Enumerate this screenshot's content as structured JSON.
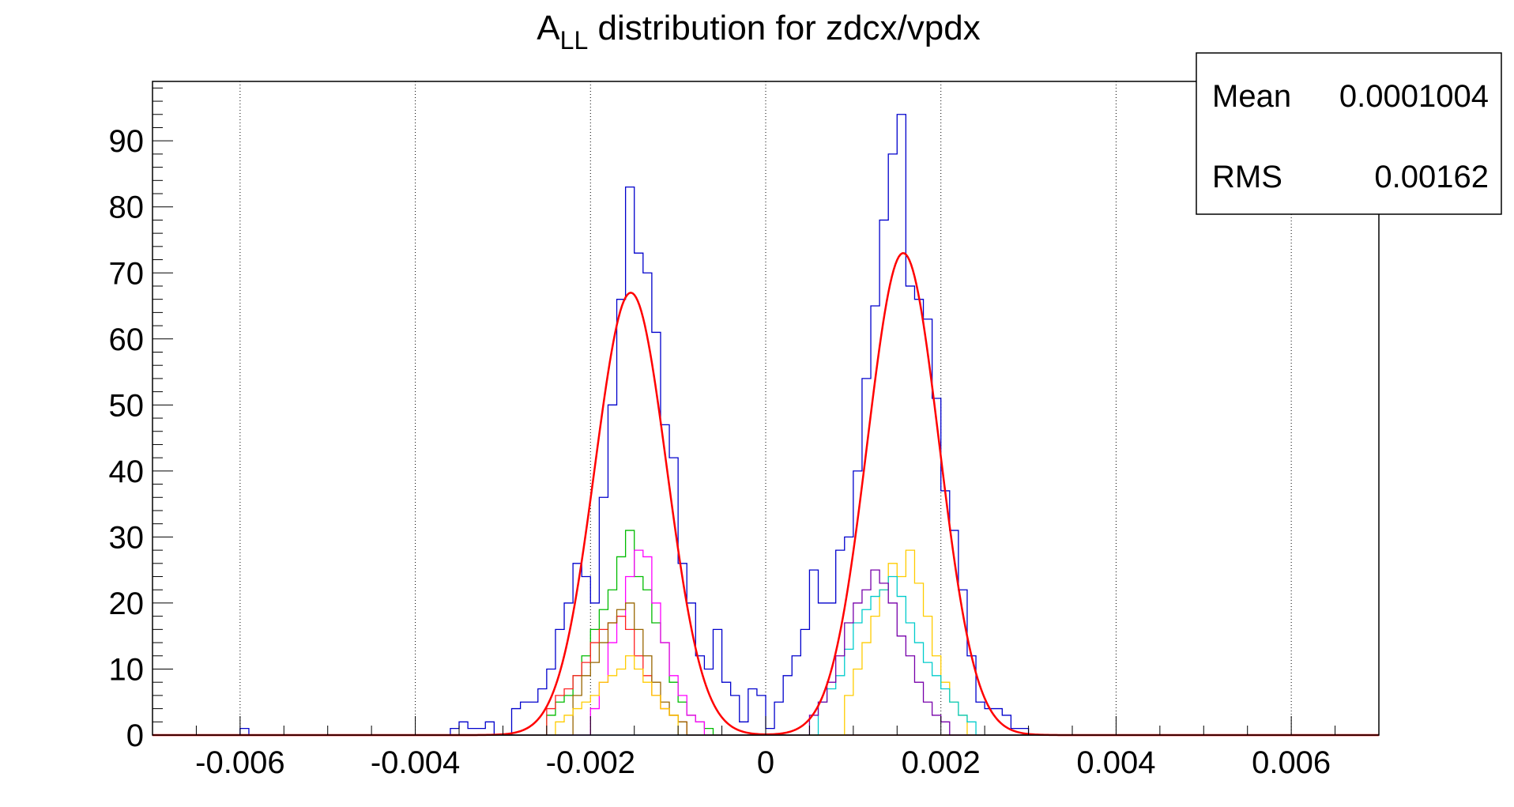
{
  "chart_data": {
    "type": "histogram",
    "title": {
      "main": "A",
      "subscript": "LL",
      "rest": " distribution for zdcx/vpdx"
    },
    "xlabel": "",
    "ylabel": "",
    "xlim": [
      -0.007,
      0.007
    ],
    "ylim": [
      0,
      99
    ],
    "x_tick_labels": [
      "-0.006",
      "-0.004",
      "-0.002",
      "0",
      "0.002",
      "0.004",
      "0.006"
    ],
    "y_tick_labels": [
      "0",
      "10",
      "20",
      "30",
      "40",
      "50",
      "60",
      "70",
      "80",
      "90"
    ],
    "grid": {
      "vertical": true,
      "horizontal": false,
      "style": "dotted"
    },
    "stats_box": {
      "position": "top-right",
      "rows": [
        {
          "label": "Mean",
          "value": "0.0001004"
        },
        {
          "label": "RMS",
          "value": "0.00162"
        }
      ]
    },
    "series": [
      {
        "color": "#0000cc",
        "bins": [
          [
            -0.006,
            1
          ],
          [
            -0.0036,
            1
          ],
          [
            -0.0035,
            2
          ],
          [
            -0.0034,
            1
          ],
          [
            -0.0033,
            1
          ],
          [
            -0.0032,
            2
          ],
          [
            -0.0029,
            4
          ],
          [
            -0.0028,
            5
          ],
          [
            -0.0027,
            5
          ],
          [
            -0.0026,
            7
          ],
          [
            -0.0025,
            10
          ],
          [
            -0.0024,
            16
          ],
          [
            -0.0023,
            20
          ],
          [
            -0.0022,
            26
          ],
          [
            -0.0021,
            24
          ],
          [
            -0.002,
            20
          ],
          [
            -0.0019,
            36
          ],
          [
            -0.0018,
            50
          ],
          [
            -0.0017,
            66
          ],
          [
            -0.0016,
            83
          ],
          [
            -0.0015,
            73
          ],
          [
            -0.0014,
            70
          ],
          [
            -0.0013,
            61
          ],
          [
            -0.0012,
            47
          ],
          [
            -0.0011,
            42
          ],
          [
            -0.001,
            26
          ],
          [
            -0.0009,
            20
          ],
          [
            -0.0008,
            12
          ],
          [
            -0.0007,
            10
          ],
          [
            -0.0006,
            16
          ],
          [
            -0.0005,
            8
          ],
          [
            -0.0004,
            6
          ],
          [
            -0.0003,
            2
          ],
          [
            -0.0002,
            7
          ],
          [
            -0.0001,
            6
          ],
          [
            0.0,
            1
          ],
          [
            0.0001,
            5
          ],
          [
            0.0002,
            9
          ],
          [
            0.0003,
            12
          ],
          [
            0.0004,
            16
          ],
          [
            0.0005,
            25
          ],
          [
            0.0006,
            20
          ],
          [
            0.0007,
            20
          ],
          [
            0.0008,
            28
          ],
          [
            0.0009,
            30
          ],
          [
            0.001,
            40
          ],
          [
            0.0011,
            54
          ],
          [
            0.0012,
            65
          ],
          [
            0.0013,
            78
          ],
          [
            0.0014,
            88
          ],
          [
            0.0015,
            94
          ],
          [
            0.0016,
            68
          ],
          [
            0.0017,
            66
          ],
          [
            0.0018,
            63
          ],
          [
            0.0019,
            51
          ],
          [
            0.002,
            37
          ],
          [
            0.0021,
            31
          ],
          [
            0.0022,
            22
          ],
          [
            0.0023,
            12
          ],
          [
            0.0024,
            5
          ],
          [
            0.0025,
            4
          ],
          [
            0.0026,
            4
          ],
          [
            0.0027,
            3
          ],
          [
            0.0028,
            1
          ],
          [
            0.0029,
            1
          ]
        ]
      },
      {
        "color": "#00bb00",
        "bins": [
          [
            -0.0025,
            3
          ],
          [
            -0.0024,
            5
          ],
          [
            -0.0023,
            6
          ],
          [
            -0.0022,
            9
          ],
          [
            -0.0021,
            12
          ],
          [
            -0.002,
            16
          ],
          [
            -0.0019,
            19
          ],
          [
            -0.0018,
            22
          ],
          [
            -0.0017,
            27
          ],
          [
            -0.0016,
            31
          ],
          [
            -0.0015,
            24
          ],
          [
            -0.0014,
            22
          ],
          [
            -0.0013,
            17
          ],
          [
            -0.0012,
            14
          ],
          [
            -0.0011,
            8
          ],
          [
            -0.001,
            5
          ],
          [
            -0.0009,
            3
          ],
          [
            -0.0008,
            2
          ],
          [
            -0.0007,
            1
          ]
        ]
      },
      {
        "color": "#ff00ff",
        "bins": [
          [
            -0.002,
            4
          ],
          [
            -0.0019,
            8
          ],
          [
            -0.0018,
            14
          ],
          [
            -0.0017,
            18
          ],
          [
            -0.0016,
            24
          ],
          [
            -0.0015,
            28
          ],
          [
            -0.0014,
            27
          ],
          [
            -0.0013,
            20
          ],
          [
            -0.0012,
            14
          ],
          [
            -0.0011,
            9
          ],
          [
            -0.001,
            6
          ],
          [
            -0.0009,
            3
          ],
          [
            -0.0008,
            2
          ]
        ]
      },
      {
        "color": "#ff2020",
        "bins": [
          [
            -0.0025,
            4
          ],
          [
            -0.0024,
            6
          ],
          [
            -0.0023,
            7
          ],
          [
            -0.0022,
            9
          ],
          [
            -0.0021,
            11
          ],
          [
            -0.002,
            14
          ],
          [
            -0.0019,
            16
          ],
          [
            -0.0018,
            17
          ],
          [
            -0.0017,
            18
          ],
          [
            -0.0016,
            16
          ],
          [
            -0.0015,
            12
          ],
          [
            -0.0014,
            9
          ],
          [
            -0.0013,
            6
          ],
          [
            -0.0012,
            4
          ],
          [
            -0.0011,
            3
          ],
          [
            -0.001,
            2
          ]
        ]
      },
      {
        "color": "#996600",
        "bins": [
          [
            -0.0022,
            6
          ],
          [
            -0.0021,
            9
          ],
          [
            -0.002,
            11
          ],
          [
            -0.0019,
            14
          ],
          [
            -0.0018,
            17
          ],
          [
            -0.0017,
            19
          ],
          [
            -0.0016,
            20
          ],
          [
            -0.0015,
            16
          ],
          [
            -0.0014,
            12
          ],
          [
            -0.0013,
            8
          ],
          [
            -0.0012,
            5
          ],
          [
            -0.0011,
            3
          ],
          [
            -0.001,
            2
          ]
        ]
      },
      {
        "color": "#ffcc00",
        "bins": [
          [
            -0.0024,
            2
          ],
          [
            -0.0023,
            3
          ],
          [
            -0.0022,
            4
          ],
          [
            -0.0021,
            5
          ],
          [
            -0.002,
            6
          ],
          [
            -0.0019,
            8
          ],
          [
            -0.0018,
            9
          ],
          [
            -0.0017,
            10
          ],
          [
            -0.0016,
            12
          ],
          [
            -0.0015,
            10
          ],
          [
            -0.0014,
            8
          ],
          [
            -0.0013,
            6
          ],
          [
            -0.0012,
            4
          ],
          [
            -0.0011,
            3
          ],
          [
            0.0009,
            6
          ],
          [
            0.001,
            10
          ],
          [
            0.0011,
            14
          ],
          [
            0.0012,
            18
          ],
          [
            0.0013,
            22
          ],
          [
            0.0014,
            26
          ],
          [
            0.0015,
            24
          ],
          [
            0.0016,
            28
          ],
          [
            0.0017,
            23
          ],
          [
            0.0018,
            18
          ],
          [
            0.0019,
            12
          ],
          [
            0.002,
            8
          ],
          [
            0.0021,
            5
          ],
          [
            0.0022,
            3
          ]
        ]
      },
      {
        "color": "#00cccc",
        "bins": [
          [
            0.0006,
            5
          ],
          [
            0.0007,
            7
          ],
          [
            0.0008,
            9
          ],
          [
            0.0009,
            13
          ],
          [
            0.001,
            17
          ],
          [
            0.0011,
            19
          ],
          [
            0.0012,
            21
          ],
          [
            0.0013,
            22
          ],
          [
            0.0014,
            24
          ],
          [
            0.0015,
            21
          ],
          [
            0.0016,
            17
          ],
          [
            0.0017,
            14
          ],
          [
            0.0018,
            11
          ],
          [
            0.0019,
            9
          ],
          [
            0.002,
            7
          ],
          [
            0.0021,
            5
          ],
          [
            0.0022,
            3
          ],
          [
            0.0023,
            2
          ]
        ]
      },
      {
        "color": "#7700aa",
        "bins": [
          [
            0.0005,
            3
          ],
          [
            0.0006,
            5
          ],
          [
            0.0007,
            8
          ],
          [
            0.0008,
            12
          ],
          [
            0.0009,
            17
          ],
          [
            0.001,
            20
          ],
          [
            0.0011,
            22
          ],
          [
            0.0012,
            25
          ],
          [
            0.0013,
            23
          ],
          [
            0.0014,
            20
          ],
          [
            0.0015,
            15
          ],
          [
            0.0016,
            12
          ],
          [
            0.0017,
            8
          ],
          [
            0.0018,
            5
          ],
          [
            0.0019,
            3
          ],
          [
            0.002,
            2
          ]
        ]
      }
    ],
    "fit": {
      "color": "#ff0000",
      "components": [
        {
          "amplitude": 67,
          "mean": -0.00154,
          "sigma": 0.00041
        },
        {
          "amplitude": 73,
          "mean": 0.00157,
          "sigma": 0.00041
        }
      ]
    }
  }
}
